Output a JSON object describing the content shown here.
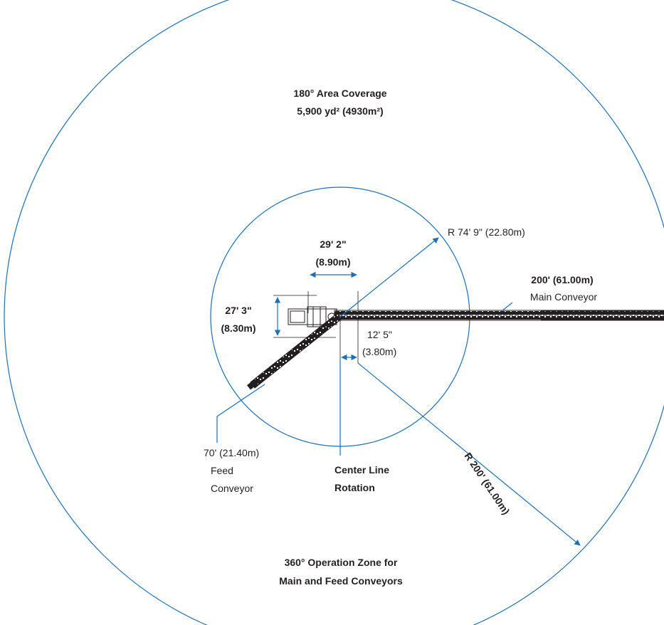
{
  "labels": {
    "area_coverage_line1": "180° Area Coverage",
    "area_coverage_line2": "5,900 yd² (4930m²)",
    "inner_radius": "R 74' 9\" (22.80m)",
    "width_ft": "29' 2\"",
    "width_m": "(8.90m)",
    "main_conveyor_len": "200' (61.00m)",
    "main_conveyor_name": "Main Conveyor",
    "height_ft": "27' 3\"",
    "height_m": "(8.30m)",
    "offset_ft": "12' 5\"",
    "offset_m": "(3.80m)",
    "feed_conveyor_len": "70' (21.40m)",
    "feed_conveyor_name_1": "Feed",
    "feed_conveyor_name_2": "Conveyor",
    "center_line_1": "Center Line",
    "center_line_2": "Rotation",
    "outer_radius": "R 200' (61.00m)",
    "operation_zone_1": "360° Operation Zone for",
    "operation_zone_2": "Main and Feed Conveyors"
  },
  "colors": {
    "dimension_blue": "#1f6fb2",
    "machine_black": "#231f20",
    "text": "#231f20"
  }
}
